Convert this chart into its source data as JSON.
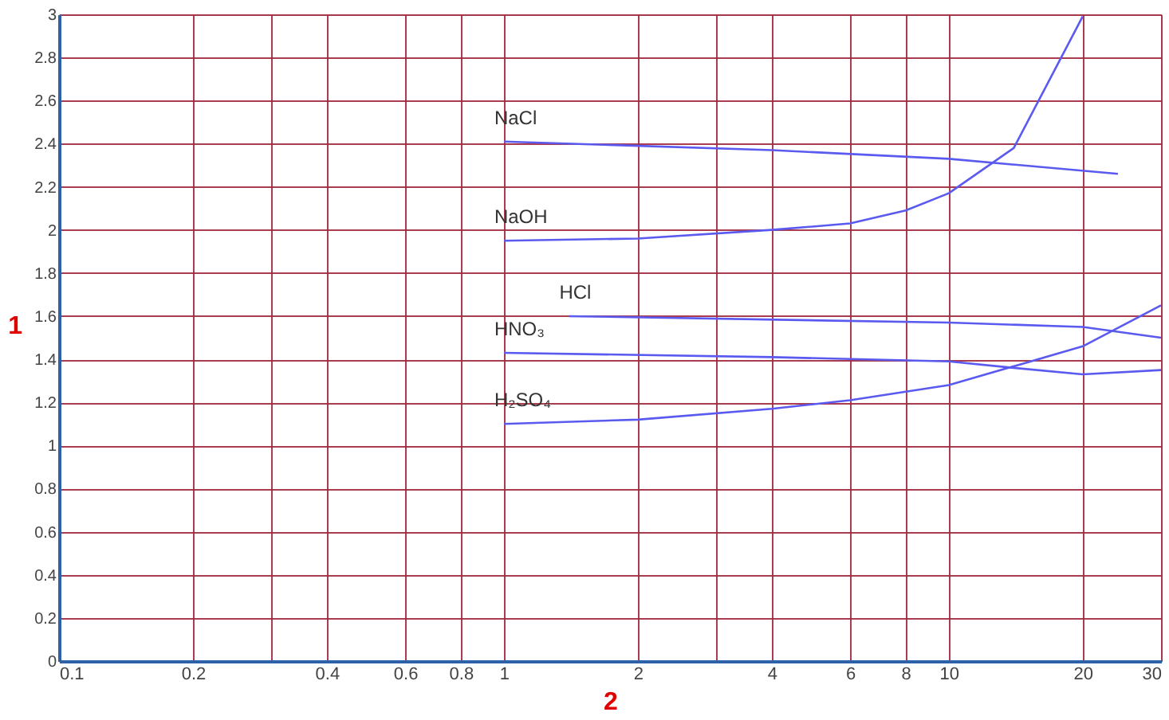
{
  "chart_data": {
    "type": "line",
    "xlabel": "2",
    "ylabel": "1",
    "log": "x",
    "grid": true,
    "legend": false,
    "marker": "none",
    "line_style": "solid",
    "xlim": [
      0.1,
      30
    ],
    "ylim": [
      0,
      3
    ],
    "xticks": [
      0.1,
      0.2,
      {
        "value": 0.3,
        "label": null
      },
      0.4,
      0.6,
      0.8,
      1,
      2,
      {
        "value": 3,
        "label": null
      },
      4,
      6,
      8,
      10,
      20,
      30
    ],
    "yticks": [
      0,
      0.2,
      0.4,
      0.6,
      0.8,
      1,
      1.2,
      1.4,
      1.6,
      1.8,
      2,
      2.2,
      2.4,
      2.6,
      2.8,
      3
    ],
    "series": [
      {
        "name": "NaCl",
        "color": "#5a5af0",
        "x": [
          1,
          4,
          10,
          24
        ],
        "values": [
          2.41,
          2.37,
          2.33,
          2.26
        ]
      },
      {
        "name": "NaOH",
        "color": "#5a5af0",
        "x": [
          1,
          2,
          4,
          6,
          8,
          10,
          14,
          20
        ],
        "values": [
          1.95,
          1.96,
          2.0,
          2.03,
          2.09,
          2.17,
          2.38,
          2.99
        ]
      },
      {
        "name": "HCl",
        "color": "#5a5af0",
        "x": [
          1.4,
          10,
          20,
          30
        ],
        "values": [
          1.6,
          1.57,
          1.55,
          1.5
        ]
      },
      {
        "name": "HNO₃",
        "color": "#5a5af0",
        "x": [
          1,
          4,
          10,
          14,
          20,
          30
        ],
        "values": [
          1.43,
          1.41,
          1.39,
          1.36,
          1.33,
          1.35
        ]
      },
      {
        "name": "H₂SO₄",
        "color": "#5a5af0",
        "x": [
          1,
          2,
          4,
          6,
          10,
          20,
          30
        ],
        "values": [
          1.1,
          1.12,
          1.17,
          1.21,
          1.28,
          1.46,
          1.65
        ]
      }
    ]
  }
}
